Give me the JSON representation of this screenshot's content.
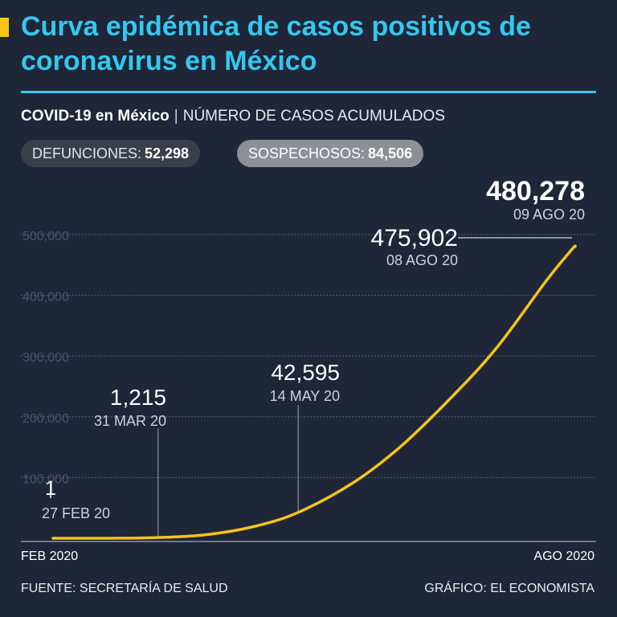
{
  "header": {
    "title": "Curva epidémica de casos positivos de coronavirus en México",
    "subtitle_strong": "COVID-19 en México",
    "subtitle_separator": "|",
    "subtitle_measure": "NÚMERO DE CASOS ACUMULADOS"
  },
  "stats": {
    "deaths_label": "DEFUNCIONES:",
    "deaths_value": "52,298",
    "suspects_label": "SOSPECHOSOS:",
    "suspects_value": "84,506"
  },
  "footer": {
    "source": "FUENTE: SECRETARÍA DE SALUD",
    "credit": "GRÁFICO: EL ECONOMISTA"
  },
  "colors": {
    "background": "#1f2638",
    "title": "#34c8f0",
    "line": "#f5c518",
    "grid": "#5a6275"
  },
  "chart_data": {
    "type": "line",
    "title": "Curva epidémica de casos positivos de coronavirus en México",
    "ylabel": "NÚMERO DE CASOS ACUMULADOS",
    "x_start": "2020-02-27",
    "x_end": "2020-08-09",
    "x_tick_labels": [
      "FEB 2020",
      "AGO 2020"
    ],
    "y_ticks": [
      {
        "value": 100000,
        "label": "100,000"
      },
      {
        "value": 200000,
        "label": "200,000"
      },
      {
        "value": 300000,
        "label": "300,000"
      },
      {
        "value": 400000,
        "label": "400,000"
      },
      {
        "value": 500000,
        "label": "500,000"
      }
    ],
    "ylim": [
      0,
      500000
    ],
    "grid": true,
    "series": [
      {
        "points": [
          {
            "x": "2020-02-27",
            "y": 1
          },
          {
            "x": "2020-03-15",
            "y": 53
          },
          {
            "x": "2020-03-31",
            "y": 1215
          },
          {
            "x": "2020-04-15",
            "y": 5847
          },
          {
            "x": "2020-04-30",
            "y": 19224
          },
          {
            "x": "2020-05-14",
            "y": 42595
          },
          {
            "x": "2020-05-31",
            "y": 90664
          },
          {
            "x": "2020-06-15",
            "y": 150264
          },
          {
            "x": "2020-06-30",
            "y": 226089
          },
          {
            "x": "2020-07-15",
            "y": 311486
          },
          {
            "x": "2020-07-31",
            "y": 424637
          },
          {
            "x": "2020-08-08",
            "y": 475902
          },
          {
            "x": "2020-08-09",
            "y": 480278
          }
        ]
      }
    ],
    "annotations": [
      {
        "x": "2020-02-27",
        "y": 1,
        "value": "1",
        "date": "27 FEB 20"
      },
      {
        "x": "2020-03-31",
        "y": 1215,
        "value": "1,215",
        "date": "31 MAR 20"
      },
      {
        "x": "2020-05-14",
        "y": 42595,
        "value": "42,595",
        "date": "14 MAY 20"
      },
      {
        "x": "2020-08-08",
        "y": 475902,
        "value": "475,902",
        "date": "08 AGO 20"
      },
      {
        "x": "2020-08-09",
        "y": 480278,
        "value": "480,278",
        "date": "09 AGO 20"
      }
    ]
  }
}
